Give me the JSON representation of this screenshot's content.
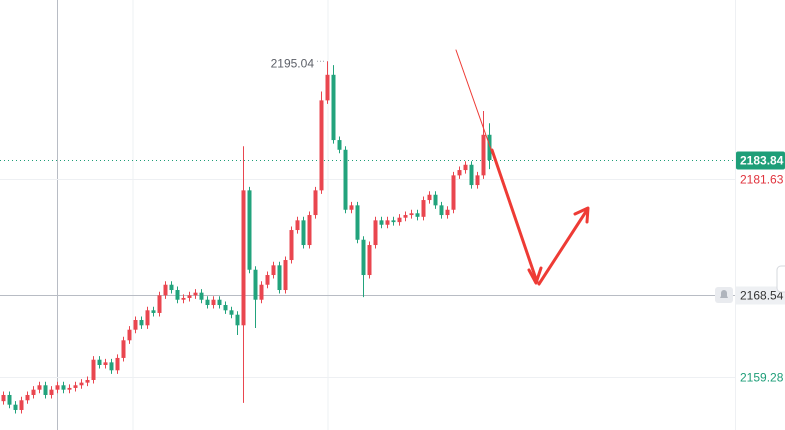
{
  "chart_data": {
    "type": "candlestick",
    "up_color": "#e9464f",
    "down_color": "#22a37c",
    "ylim": [
      2153.23,
      2201.98
    ],
    "high_marker": 2195.04,
    "price_labels": [
      {
        "value": 2183.84,
        "color": "#1e9e78",
        "line": "dotted"
      },
      {
        "value": 2181.63,
        "color": "#e0323c",
        "line": "grid"
      },
      {
        "value": 2168.54,
        "color": "#333333",
        "line": "crosshair"
      },
      {
        "value": 2159.28,
        "color": "#1e9e78",
        "line": "grid"
      }
    ],
    "open": [
      2156.5,
      2157.2,
      2156.1,
      2155.5,
      2156.6,
      2157.2,
      2157.8,
      2158.3,
      2157.2,
      2157.8,
      2158.3,
      2157.8,
      2158.0,
      2158.3,
      2158.6,
      2158.9,
      2161.2,
      2160.6,
      2160.9,
      2160.0,
      2161.4,
      2163.4,
      2164.6,
      2165.7,
      2165.1,
      2166.8,
      2166.5,
      2168.5,
      2169.7,
      2169.1,
      2168.0,
      2168.2,
      2168.5,
      2168.8,
      2168.0,
      2167.4,
      2168.0,
      2167.4,
      2166.8,
      2166.3,
      2165.1,
      2180.4,
      2171.4,
      2168.0,
      2169.7,
      2170.8,
      2171.9,
      2169.1,
      2172.5,
      2175.9,
      2177.0,
      2174.2,
      2177.6,
      2180.4,
      2190.6,
      2193.5,
      2186.1,
      2185.0,
      2178.2,
      2178.7,
      2174.8,
      2170.8,
      2174.2,
      2177.0,
      2176.5,
      2177.0,
      2176.8,
      2177.3,
      2177.6,
      2177.8,
      2177.4,
      2179.3,
      2179.9,
      2178.7,
      2177.6,
      2178.2,
      2182.1,
      2182.7,
      2183.3,
      2181.0,
      2182.1,
      2186.7
    ],
    "high": [
      2157.6,
      2157.6,
      2156.5,
      2157.0,
      2157.6,
      2158.2,
      2158.7,
      2158.7,
      2158.2,
      2158.7,
      2158.7,
      2158.4,
      2158.7,
      2159.0,
      2159.3,
      2161.6,
      2161.6,
      2161.3,
      2161.3,
      2161.8,
      2163.8,
      2165.0,
      2166.1,
      2166.1,
      2167.2,
      2167.2,
      2168.9,
      2170.1,
      2170.1,
      2169.5,
      2168.6,
      2168.9,
      2169.2,
      2169.2,
      2168.4,
      2168.4,
      2168.4,
      2167.8,
      2167.2,
      2166.7,
      2185.4,
      2180.8,
      2171.8,
      2170.1,
      2171.2,
      2172.3,
      2172.3,
      2172.9,
      2176.3,
      2177.4,
      2177.4,
      2178.0,
      2180.8,
      2191.6,
      2195.04,
      2194.6,
      2186.5,
      2185.4,
      2179.1,
      2179.1,
      2175.2,
      2174.6,
      2177.4,
      2177.4,
      2177.4,
      2177.4,
      2177.7,
      2178.0,
      2178.2,
      2178.2,
      2179.7,
      2180.3,
      2180.3,
      2179.1,
      2178.6,
      2182.5,
      2183.1,
      2183.7,
      2183.7,
      2182.5,
      2189.4,
      2188.0
    ],
    "low": [
      2156.1,
      2155.7,
      2155.1,
      2155.1,
      2156.2,
      2156.8,
      2157.4,
      2156.8,
      2156.8,
      2157.4,
      2157.4,
      2157.4,
      2157.6,
      2157.9,
      2158.2,
      2158.5,
      2160.2,
      2160.2,
      2159.6,
      2159.6,
      2161.0,
      2163.0,
      2164.2,
      2164.7,
      2164.7,
      2166.1,
      2166.1,
      2168.1,
      2168.7,
      2167.6,
      2167.6,
      2167.8,
      2168.1,
      2167.6,
      2167.0,
      2167.0,
      2167.0,
      2166.4,
      2165.9,
      2164.0,
      2156.3,
      2171.0,
      2164.8,
      2167.6,
      2169.3,
      2170.4,
      2168.7,
      2168.7,
      2172.1,
      2175.5,
      2173.8,
      2173.8,
      2177.2,
      2180.0,
      2190.2,
      2185.7,
      2184.6,
      2177.8,
      2177.8,
      2174.4,
      2168.3,
      2170.4,
      2173.8,
      2176.1,
      2176.1,
      2176.4,
      2176.4,
      2176.9,
      2177.2,
      2177.0,
      2177.0,
      2178.9,
      2178.3,
      2177.2,
      2177.2,
      2177.8,
      2181.7,
      2182.3,
      2180.6,
      2180.6,
      2181.7,
      2182.8
    ],
    "close": [
      2157.2,
      2156.1,
      2155.5,
      2156.6,
      2157.2,
      2157.8,
      2158.3,
      2157.2,
      2157.8,
      2158.3,
      2157.8,
      2158.0,
      2158.3,
      2158.6,
      2158.9,
      2161.2,
      2160.6,
      2160.9,
      2160.0,
      2161.4,
      2163.4,
      2164.6,
      2165.7,
      2165.1,
      2166.8,
      2166.5,
      2168.5,
      2169.7,
      2169.1,
      2168.0,
      2168.2,
      2168.5,
      2168.8,
      2168.0,
      2167.4,
      2168.0,
      2167.4,
      2166.8,
      2166.3,
      2165.1,
      2180.4,
      2171.4,
      2168.0,
      2169.7,
      2170.8,
      2171.9,
      2169.1,
      2172.5,
      2175.9,
      2177.0,
      2174.2,
      2177.6,
      2180.4,
      2190.6,
      2193.5,
      2186.1,
      2185.0,
      2178.2,
      2178.7,
      2174.8,
      2170.8,
      2174.2,
      2177.0,
      2176.5,
      2177.0,
      2176.8,
      2177.3,
      2177.6,
      2177.8,
      2177.4,
      2179.3,
      2179.9,
      2178.7,
      2177.6,
      2178.2,
      2182.1,
      2182.7,
      2183.3,
      2181.0,
      2182.1,
      2186.7,
      2183.84
    ]
  }
}
